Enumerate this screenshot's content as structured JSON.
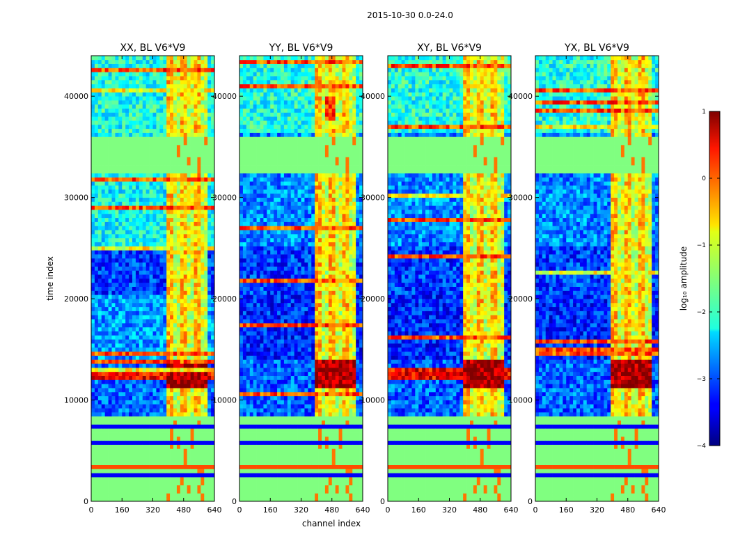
{
  "figure": {
    "suptitle": "2015-10-30 0.0-24.0"
  },
  "chart_data": {
    "type": "heatmap",
    "panels": [
      {
        "title": "XX, BL V6*V9",
        "variant": 0
      },
      {
        "title": "YY, BL V6*V9",
        "variant": 1
      },
      {
        "title": "XY, BL V6*V9",
        "variant": 2
      },
      {
        "title": "YX, BL V6*V9",
        "variant": 3
      }
    ],
    "xlabel": "channel index",
    "ylabel": "time index",
    "xlim": [
      0,
      640
    ],
    "ylim": [
      0,
      44000
    ],
    "xticks": [
      "0",
      "160",
      "320",
      "480",
      "640"
    ],
    "yticks": [
      "0",
      "10000",
      "20000",
      "30000",
      "40000"
    ],
    "colorbar": {
      "label": "log₁₀ amplitude",
      "range": [
        -4,
        1
      ],
      "ticks": [
        "1",
        "0",
        "−1",
        "−2",
        "−3",
        "−4"
      ],
      "colormap": "jet"
    },
    "features": {
      "rfi_channel_band": [
        400,
        610
      ],
      "flagged_time_blocks": [
        [
          0,
          8500
        ],
        [
          32300,
          36100
        ]
      ],
      "strong_event_time": [
        11200,
        14000
      ],
      "busy_time_block": [
        20500,
        25300
      ]
    }
  }
}
